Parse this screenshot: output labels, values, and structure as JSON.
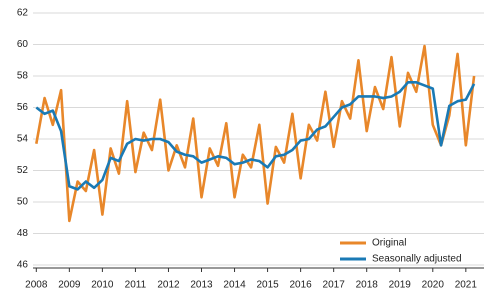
{
  "chart_data": {
    "type": "line",
    "x": [
      2008,
      2008.25,
      2008.5,
      2008.75,
      2009,
      2009.25,
      2009.5,
      2009.75,
      2010,
      2010.25,
      2010.5,
      2010.75,
      2011,
      2011.25,
      2011.5,
      2011.75,
      2012,
      2012.25,
      2012.5,
      2012.75,
      2013,
      2013.25,
      2013.5,
      2013.75,
      2014,
      2014.25,
      2014.5,
      2014.75,
      2015,
      2015.25,
      2015.5,
      2015.75,
      2016,
      2016.25,
      2016.5,
      2016.75,
      2017,
      2017.25,
      2017.5,
      2017.75,
      2018,
      2018.25,
      2018.5,
      2018.75,
      2019,
      2019.25,
      2019.5,
      2019.75,
      2020,
      2020.25,
      2020.5,
      2020.75,
      2021,
      2021.25
    ],
    "series": [
      {
        "name": "Original",
        "color": "#e8872a",
        "values": [
          53.7,
          56.6,
          54.9,
          57.1,
          48.8,
          51.3,
          50.7,
          53.3,
          49.2,
          53.4,
          51.8,
          56.4,
          51.9,
          54.4,
          53.3,
          56.5,
          52.0,
          53.6,
          52.2,
          55.3,
          50.3,
          53.4,
          52.3,
          55.0,
          50.3,
          53.0,
          52.2,
          54.9,
          49.9,
          53.5,
          52.5,
          55.6,
          51.5,
          54.9,
          53.9,
          57.0,
          53.5,
          56.4,
          55.3,
          59.0,
          54.5,
          57.3,
          55.9,
          59.2,
          54.8,
          58.2,
          57.0,
          59.9,
          54.9,
          53.6,
          55.5,
          59.4,
          53.6,
          58.0
        ]
      },
      {
        "name": "Seasonally adjusted",
        "color": "#1a7ab5",
        "values": [
          56.0,
          55.6,
          55.8,
          54.5,
          51.0,
          50.8,
          51.3,
          50.9,
          51.4,
          52.8,
          52.6,
          53.7,
          54.0,
          53.9,
          54.0,
          54.0,
          53.8,
          53.2,
          53.0,
          52.9,
          52.5,
          52.7,
          52.9,
          52.8,
          52.4,
          52.5,
          52.7,
          52.6,
          52.2,
          52.9,
          53.0,
          53.3,
          53.9,
          54.0,
          54.6,
          54.8,
          55.4,
          56.0,
          56.2,
          56.7,
          56.7,
          56.7,
          56.6,
          56.7,
          57.0,
          57.6,
          57.6,
          57.4,
          57.2,
          53.6,
          56.1,
          56.4,
          56.5,
          57.5
        ]
      }
    ],
    "xlim": [
      2007.9,
      2021.55
    ],
    "xticks": [
      2008,
      2009,
      2010,
      2011,
      2012,
      2013,
      2014,
      2015,
      2016,
      2017,
      2018,
      2019,
      2020,
      2021
    ],
    "ylim": [
      46,
      62
    ],
    "yticks": [
      46,
      48,
      50,
      52,
      54,
      56,
      58,
      60,
      62
    ],
    "grid": true,
    "legend": "lower right"
  }
}
